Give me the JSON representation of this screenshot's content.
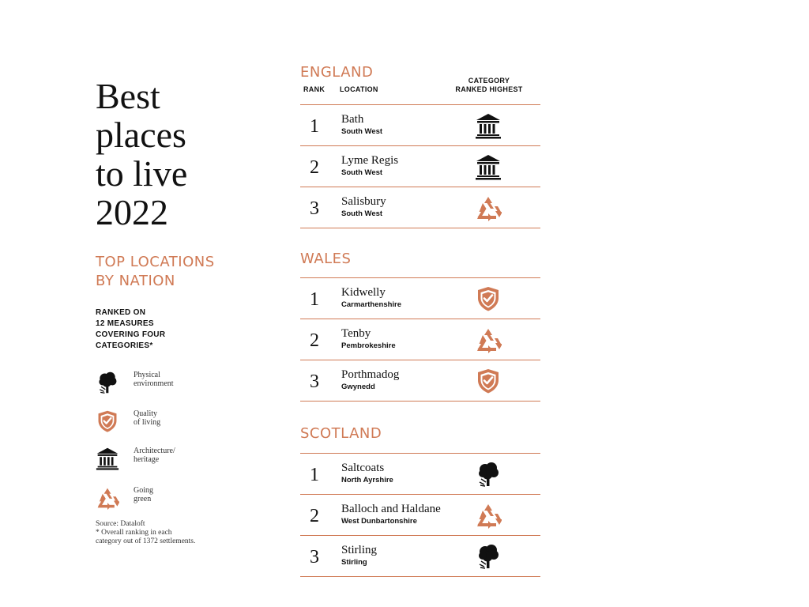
{
  "title": {
    "lines": [
      "Best",
      "places",
      "to live",
      "2022"
    ]
  },
  "subtitle": {
    "lines": [
      "TOP LOCATIONS",
      "BY NATION"
    ]
  },
  "ranked_note": {
    "lines": [
      "RANKED ON",
      "12 MEASURES",
      "COVERING FOUR",
      "CATEGORIES*"
    ]
  },
  "legend": [
    {
      "icon": "tree-icon",
      "lines": [
        "Physical",
        "environment"
      ]
    },
    {
      "icon": "shield-check-icon",
      "lines": [
        "Quality",
        "of living"
      ]
    },
    {
      "icon": "building-icon",
      "lines": [
        "Architecture/",
        "heritage"
      ]
    },
    {
      "icon": "recycle-icon",
      "lines": [
        "Going",
        "green"
      ]
    }
  ],
  "source": {
    "lines": [
      "Source: Dataloft",
      "* Overall ranking in each",
      "category out of 1372 settlements."
    ]
  },
  "headers": {
    "rank": "RANK",
    "location": "LOCATION",
    "category": [
      "CATEGORY",
      "RANKED HIGHEST"
    ]
  },
  "colors": {
    "accent": "#d07a55",
    "text": "#111111"
  },
  "nations": [
    {
      "name": "ENGLAND",
      "rows": [
        {
          "rank": "1",
          "name": "Bath",
          "region": "South West",
          "category": "building-icon"
        },
        {
          "rank": "2",
          "name": "Lyme Regis",
          "region": "South West",
          "category": "building-icon"
        },
        {
          "rank": "3",
          "name": "Salisbury",
          "region": "South West",
          "category": "recycle-icon"
        }
      ]
    },
    {
      "name": "WALES",
      "rows": [
        {
          "rank": "1",
          "name": "Kidwelly",
          "region": "Carmarthenshire",
          "category": "shield-check-icon"
        },
        {
          "rank": "2",
          "name": "Tenby",
          "region": "Pembrokeshire",
          "category": "recycle-icon"
        },
        {
          "rank": "3",
          "name": "Porthmadog",
          "region": "Gwynedd",
          "category": "shield-check-icon"
        }
      ]
    },
    {
      "name": "SCOTLAND",
      "rows": [
        {
          "rank": "1",
          "name": "Saltcoats",
          "region": "North Ayrshire",
          "category": "tree-icon"
        },
        {
          "rank": "2",
          "name": "Balloch and Haldane",
          "region": "West Dunbartonshire",
          "category": "recycle-icon"
        },
        {
          "rank": "3",
          "name": "Stirling",
          "region": "Stirling",
          "category": "tree-icon"
        }
      ]
    }
  ]
}
